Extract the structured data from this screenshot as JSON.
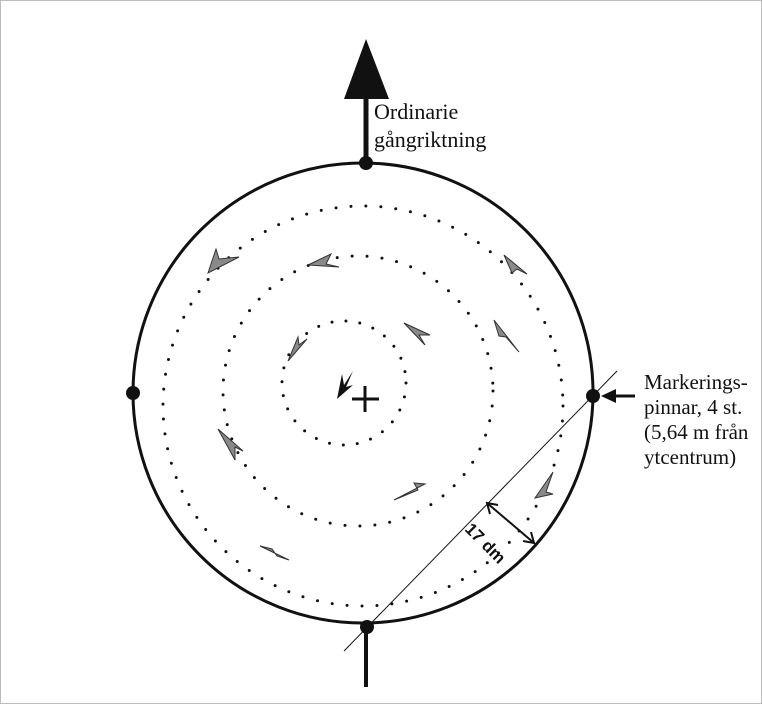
{
  "labels": {
    "direction_line1": "Ordinarie",
    "direction_line2": "gångriktning",
    "markers_line1": "Markerings-",
    "markers_line2": "pinnar, 4 st.",
    "markers_line3": "(5,64 m från",
    "markers_line4": "ytcentrum)",
    "distance": "17 dm"
  },
  "colors": {
    "ink": "#111111",
    "arrow_fill": "#8a8a8a",
    "frame": "#bdbdbd"
  }
}
